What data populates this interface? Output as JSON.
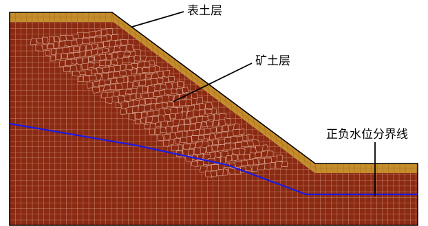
{
  "labels": {
    "topsoil": "表土层",
    "ore_soil": "矿土层",
    "water_boundary": "正负水位分界线"
  },
  "colors": {
    "ore_fill": "#8b2a12",
    "topsoil_fill": "#c58d2c",
    "mesh_line": "#d8a08c",
    "outline": "#000000",
    "water_line": "#1a1ae6",
    "background": "#ffffff"
  }
}
